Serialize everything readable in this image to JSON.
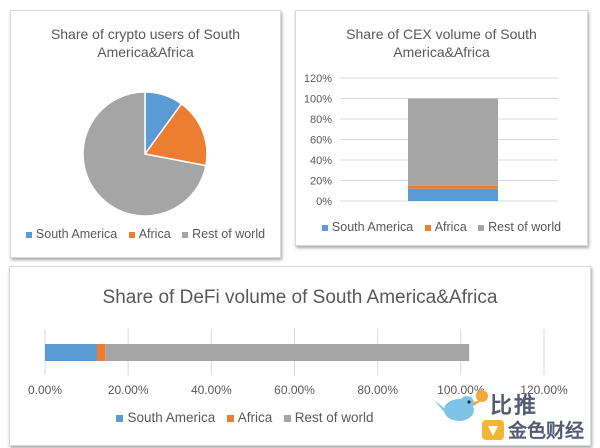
{
  "colors": {
    "south_america": "#5b9bd5",
    "africa": "#ed7d31",
    "rest_of_world": "#a5a5a5"
  },
  "chart_data": [
    {
      "type": "pie",
      "title": "Share of crypto users of South America&Africa",
      "title_lines": [
        "Share of crypto users of South",
        "America&Africa"
      ],
      "categories": [
        "South America",
        "Africa",
        "Rest of world"
      ],
      "values": [
        10,
        18,
        72
      ],
      "legend": "bottom"
    },
    {
      "type": "bar",
      "stacked": true,
      "title": "Share of CEX volume of South America&Africa",
      "title_lines": [
        "Share of CEX volume of South",
        "America&Africa"
      ],
      "series": [
        {
          "name": "South America",
          "values": [
            12
          ]
        },
        {
          "name": "Africa",
          "values": [
            3
          ]
        },
        {
          "name": "Rest of world",
          "values": [
            85
          ]
        }
      ],
      "y_ticks": [
        "0%",
        "20%",
        "40%",
        "60%",
        "80%",
        "100%",
        "120%"
      ],
      "ylim": [
        0,
        120
      ],
      "grid": true,
      "legend": "bottom"
    },
    {
      "type": "bar",
      "orientation": "horizontal",
      "stacked": true,
      "title": "Share of DeFi volume of South America&Africa",
      "series": [
        {
          "name": "South America",
          "values": [
            12.5
          ]
        },
        {
          "name": "Africa",
          "values": [
            2
          ]
        },
        {
          "name": "Rest of world",
          "values": [
            87.5
          ]
        }
      ],
      "x_ticks": [
        "0.00%",
        "20.00%",
        "40.00%",
        "60.00%",
        "80.00%",
        "100.00%",
        "120.00%"
      ],
      "xlim": [
        0,
        120
      ],
      "grid": true,
      "legend": "bottom"
    }
  ],
  "watermark": {
    "text_top": "比推",
    "text_bottom": "金色财经"
  }
}
